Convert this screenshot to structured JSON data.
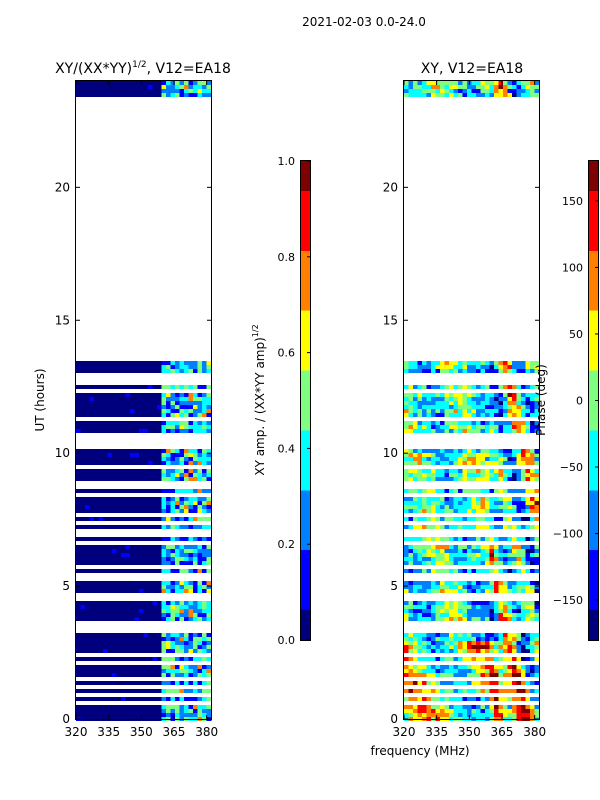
{
  "figure_title": "2021-02-03 0.0-24.0",
  "colors": {
    "jet": [
      "#00007f",
      "#0000ff",
      "#007fff",
      "#00ffff",
      "#7fff7f",
      "#ffff00",
      "#ff7f00",
      "#ff0000",
      "#7f0000"
    ],
    "frame": "#000000",
    "background": "#ffffff"
  },
  "chart_data": [
    {
      "type": "heatmap",
      "title": "XY/(XX*YY)",
      "title_sup": "1/2",
      "title_suffix": ", V12=EA18",
      "xlabel": "",
      "ylabel": "UT (hours)",
      "xlim": [
        320,
        382
      ],
      "ylim": [
        0,
        24
      ],
      "xticks": [
        320,
        335,
        350,
        365,
        380
      ],
      "yticks": [
        0,
        5,
        10,
        15,
        20
      ],
      "data_ranges_hours": [
        [
          0,
          13.5
        ],
        [
          23.4,
          24.0
        ]
      ],
      "bright_freq_band": [
        360,
        382
      ],
      "gap_rows_hours": [
        0.55,
        0.9,
        1.2,
        1.45,
        2.1,
        2.35,
        3.3,
        3.5,
        3.65,
        4.6,
        5.35,
        5.75,
        6.6,
        7.0,
        7.35,
        7.7,
        8.45,
        8.7,
        8.85,
        9.5,
        10.3,
        10.5,
        10.65,
        11.3,
        12.3,
        12.7,
        12.95
      ],
      "colorbar": {
        "label": "XY amp. / (XX*YY amp)",
        "label_sup": "1/2",
        "range": [
          0.0,
          1.0
        ],
        "ticks": [
          "0.0",
          "0.2",
          "0.4",
          "0.6",
          "0.8",
          "1.0"
        ]
      }
    },
    {
      "type": "heatmap",
      "title": "XY, V12=EA18",
      "xlabel": "frequency (MHz)",
      "ylabel": "",
      "xlim": [
        320,
        382
      ],
      "ylim": [
        0,
        24
      ],
      "xticks": [
        320,
        335,
        350,
        365,
        380
      ],
      "yticks": [
        0,
        5,
        10,
        15,
        20
      ],
      "data_ranges_hours": [
        [
          0,
          13.5
        ],
        [
          23.4,
          24.0
        ]
      ],
      "gap_rows_hours": [
        0.55,
        0.9,
        1.2,
        1.45,
        2.1,
        2.35,
        3.3,
        3.5,
        3.65,
        4.6,
        5.35,
        5.75,
        6.6,
        7.0,
        7.35,
        7.7,
        8.45,
        8.7,
        8.85,
        9.5,
        10.3,
        10.5,
        10.65,
        11.3,
        12.3,
        12.7,
        12.95
      ],
      "colorbar": {
        "label": "Phase (deg)",
        "range": [
          -180,
          180
        ],
        "ticks": [
          "150",
          "100",
          "50",
          "0",
          "−50",
          "−100",
          "−150"
        ],
        "tick_values": [
          150,
          100,
          50,
          0,
          -50,
          -100,
          -150
        ]
      }
    }
  ]
}
